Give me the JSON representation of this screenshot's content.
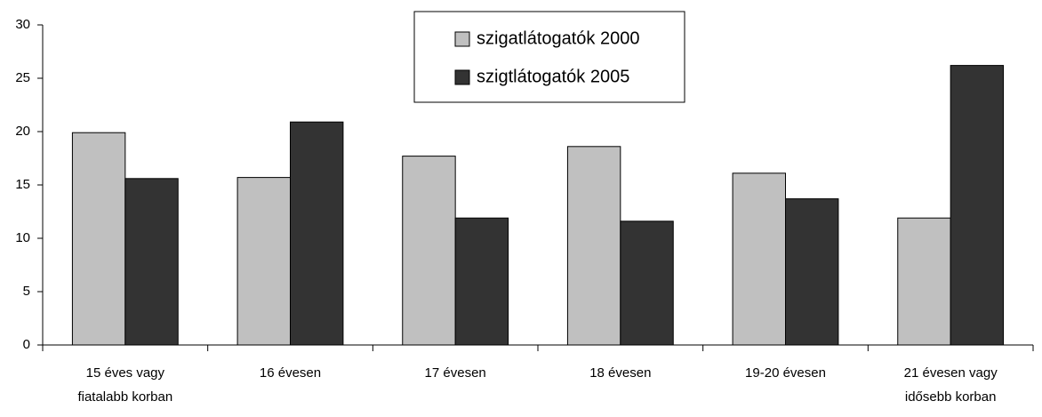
{
  "chart_data": {
    "type": "bar",
    "categories": [
      [
        "15 éves vagy",
        "fiatalabb korban"
      ],
      [
        "16 évesen"
      ],
      [
        "17 évesen"
      ],
      [
        "18 évesen"
      ],
      [
        "19-20 évesen"
      ],
      [
        "21 évesen vagy",
        "idősebb korban"
      ]
    ],
    "series": [
      {
        "name": "szigatlátogatók 2000",
        "color": "#c0c0c0",
        "values": [
          19.9,
          15.7,
          17.7,
          18.6,
          16.1,
          11.9
        ]
      },
      {
        "name": "szigtlátogatók 2005",
        "color": "#333333",
        "values": [
          15.6,
          20.9,
          11.9,
          11.6,
          13.7,
          26.2
        ]
      }
    ],
    "ylim": [
      0,
      30
    ],
    "yticks": [
      0,
      5,
      10,
      15,
      20,
      25,
      30
    ],
    "grid": false,
    "legend": "top"
  }
}
